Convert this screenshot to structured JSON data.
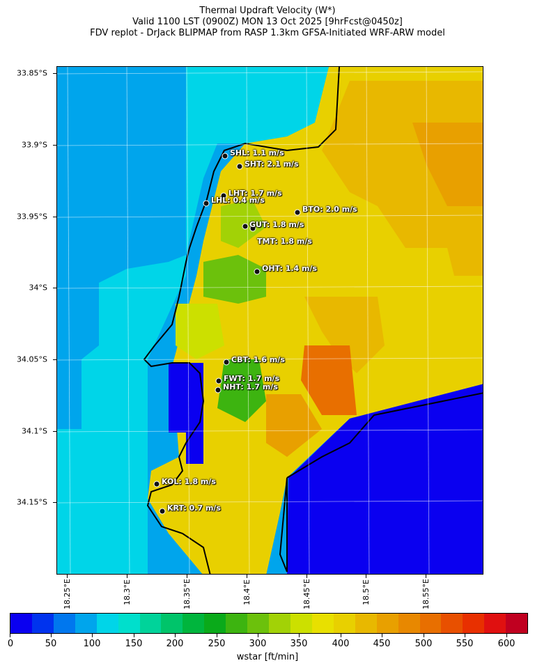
{
  "title": {
    "line1": "Thermal Updraft Velocity (W*)",
    "line2": "Valid 1100 LST (0900Z) MON 13 Oct 2025 [9hrFcst@0450z]",
    "line3": "FDV replot - DrJack BLIPMAP from RASP 1.3km GFSA-Initiated WRF-ARW model"
  },
  "lat_labels": [
    "33.85°S",
    "33.9°S",
    "33.95°S",
    "34°S",
    "34.05°S",
    "34.1°S",
    "34.15°S"
  ],
  "lon_labels": [
    "18.25°E",
    "18.3°E",
    "18.35°E",
    "18.4°E",
    "18.45°E",
    "18.5°E",
    "18.55°E"
  ],
  "colorbar": {
    "title": "wstar [ft/min]",
    "tick_labels": [
      "0",
      "50",
      "100",
      "150",
      "200",
      "250",
      "300",
      "350",
      "400",
      "450",
      "500",
      "550",
      "600"
    ],
    "colors": [
      "#0a00f0",
      "#0033ee",
      "#0077ee",
      "#00a5ec",
      "#00d5e8",
      "#00dfcc",
      "#00d39a",
      "#00c46a",
      "#00b53d",
      "#0aaa1a",
      "#3db410",
      "#6cc10c",
      "#a2d206",
      "#cce000",
      "#e8e000",
      "#e8d000",
      "#e8b800",
      "#e8a000",
      "#e88800",
      "#e86f00",
      "#e85000",
      "#e83000",
      "#e01010",
      "#c00020"
    ]
  },
  "stations": [
    {
      "label": "SHL: 1.1 m/s"
    },
    {
      "label": "SHT: 2.1 m/s"
    },
    {
      "label": "LHT: 1.7 m/s"
    },
    {
      "label": "LHL: 0.4 m/s"
    },
    {
      "label": "BTO: 2.0 m/s"
    },
    {
      "label": "GUT: 1.8 m/s"
    },
    {
      "label": "TMT: 1.8 m/s"
    },
    {
      "label": "OHT: 1.4 m/s"
    },
    {
      "label": "CBT: 1.6 m/s"
    },
    {
      "label": "FWT: 1.7 m/s"
    },
    {
      "label": "NHT: 1.7 m/s"
    },
    {
      "label": "KOL: 1.8 m/s"
    },
    {
      "label": "KRT: 0.7 m/s"
    }
  ]
}
